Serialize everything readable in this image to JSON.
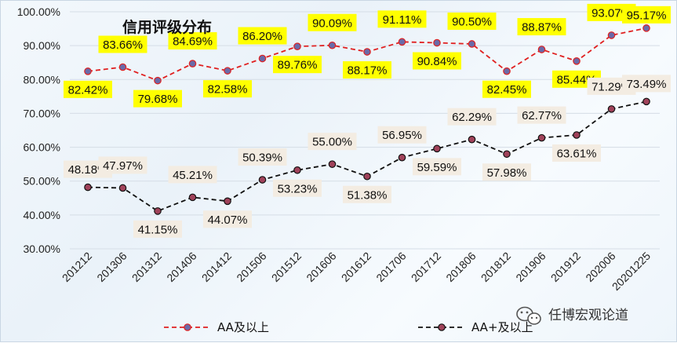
{
  "chart_data": {
    "type": "line",
    "title": "信用评级分布",
    "xlabel": "",
    "ylabel": "",
    "ylim": [
      0.3,
      1.0
    ],
    "y_ticks": [
      "100.00%",
      "90.00%",
      "80.00%",
      "70.00%",
      "60.00%",
      "50.00%",
      "40.00%",
      "30.00%"
    ],
    "grid": true,
    "legend_position": "bottom",
    "categories": [
      "201212",
      "201306",
      "201312",
      "201406",
      "201412",
      "201506",
      "201512",
      "201606",
      "201612",
      "201706",
      "201712",
      "201806",
      "201812",
      "201906",
      "201912",
      "202006",
      "20201225"
    ],
    "series": [
      {
        "name": "AA及以上",
        "color": "#e02020",
        "marker_color": "#6a6aa8",
        "label_bg": "#ffff00",
        "values": [
          0.8242,
          0.8366,
          0.7968,
          0.8469,
          0.8258,
          0.862,
          0.8976,
          0.9009,
          0.8817,
          0.9111,
          0.9084,
          0.905,
          0.8245,
          0.8887,
          0.8544,
          0.9307,
          0.9517
        ],
        "labels": [
          "82.42%",
          "83.66%",
          "79.68%",
          "84.69%",
          "82.58%",
          "86.20%",
          "89.76%",
          "90.09%",
          "88.17%",
          "91.11%",
          "90.84%",
          "90.50%",
          "82.45%",
          "88.87%",
          "85.44%",
          "93.07%",
          "95.17%"
        ]
      },
      {
        "name": "AA+及以上",
        "color": "#111111",
        "marker_color": "#a0425a",
        "label_bg": "#f3ece2",
        "values": [
          0.4818,
          0.4797,
          0.4115,
          0.4521,
          0.4407,
          0.5039,
          0.5323,
          0.55,
          0.5138,
          0.5695,
          0.5959,
          0.6229,
          0.5798,
          0.6277,
          0.6361,
          0.7129,
          0.7349
        ],
        "labels": [
          "48.18%",
          "47.97%",
          "41.15%",
          "45.21%",
          "44.07%",
          "50.39%",
          "53.23%",
          "55.00%",
          "51.38%",
          "56.95%",
          "59.59%",
          "62.29%",
          "57.98%",
          "62.77%",
          "63.61%",
          "71.29%",
          "73.49%"
        ]
      }
    ]
  },
  "watermark": {
    "text": "任博宏观论道",
    "icon": "wechat-icon"
  }
}
